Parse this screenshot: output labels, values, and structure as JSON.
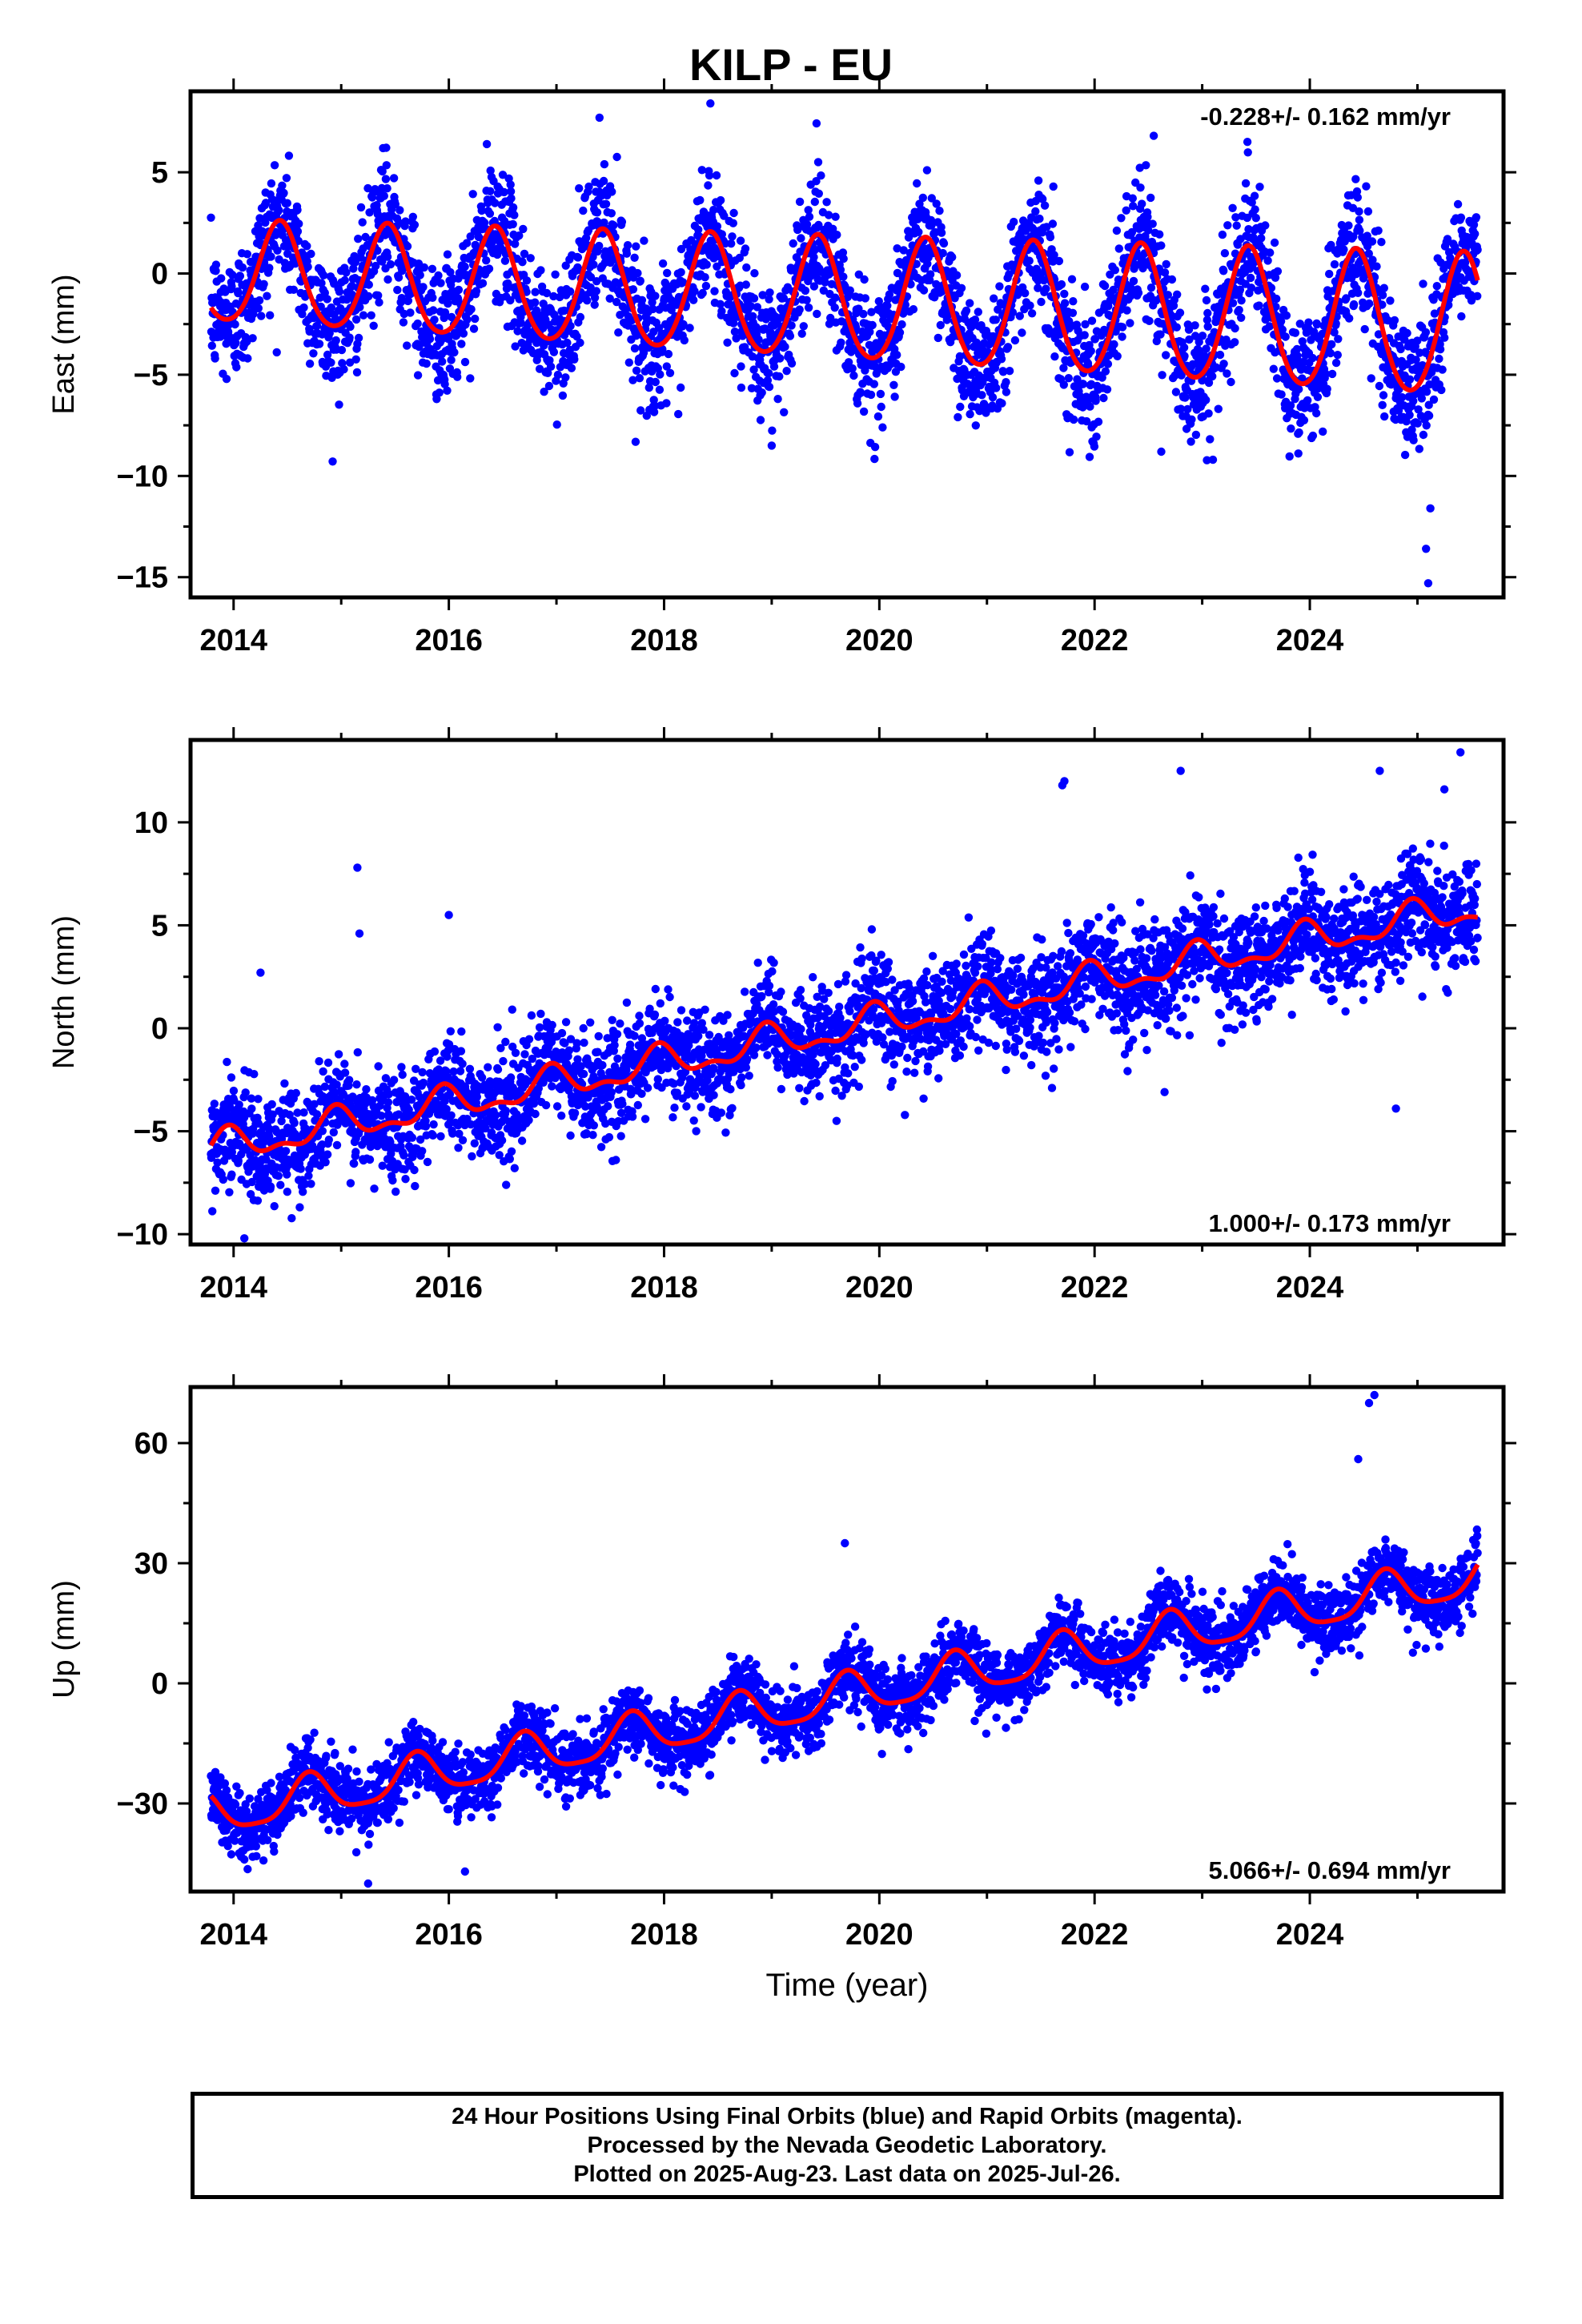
{
  "title": "KILP - EU",
  "footer": {
    "line1": "24 Hour Positions Using Final Orbits (blue) and Rapid Orbits (magenta).",
    "line2": "Processed by the Nevada Geodetic Laboratory.",
    "line3": "Plotted on 2025-Aug-23. Last data on 2025-Jul-26."
  },
  "colors": {
    "points": "#0000ff",
    "model": "#ff0000",
    "axes": "#000000"
  },
  "chart_data": [
    {
      "type": "scatter",
      "title": "KILP - EU",
      "xlabel": "",
      "ylabel": "East (mm)",
      "xlim": [
        2013.6,
        2025.8
      ],
      "ylim": [
        -16,
        9
      ],
      "xticks": [
        2014,
        2016,
        2018,
        2020,
        2022,
        2024
      ],
      "yticks": [
        5,
        0,
        -5,
        -10,
        -15
      ],
      "ytick_labels": [
        "5",
        "0",
        "−5",
        "−10",
        "−15"
      ],
      "rate_label": "-0.228+/- 0.162 mm/yr",
      "rate_label_position": "top-right",
      "series": [
        {
          "role": "daily positions",
          "color": "#0000ff",
          "model": {
            "intercept": -0.1,
            "rate": -0.228,
            "annual_amp": 3.0,
            "annual_amp_trend": 0.09,
            "annual_phase": 2014.43,
            "semiannual_amp": 0.3,
            "noise_sd": 1.6
          },
          "outliers": [
            [
              2018.43,
              8.4
            ],
            [
              2025.12,
              -11.6
            ],
            [
              2025.08,
              -13.6
            ],
            [
              2025.1,
              -15.3
            ],
            [
              2019.0,
              -8.5
            ],
            [
              2021.98,
              -8.3
            ],
            [
              2022.62,
              -8.8
            ],
            [
              2023.1,
              -9.2
            ],
            [
              2022.55,
              6.8
            ],
            [
              2017.4,
              7.7
            ],
            [
              2023.42,
              6.5
            ]
          ]
        },
        {
          "role": "model fit",
          "color": "#ff0000"
        }
      ]
    },
    {
      "type": "scatter",
      "title": "",
      "xlabel": "",
      "ylabel": "North (mm)",
      "xlim": [
        2013.6,
        2025.8
      ],
      "ylim": [
        -10.5,
        14
      ],
      "xticks": [
        2014,
        2016,
        2018,
        2020,
        2022,
        2024
      ],
      "yticks": [
        10,
        5,
        0,
        -5,
        -10
      ],
      "ytick_labels": [
        "10",
        "5",
        "0",
        "−5",
        "−10"
      ],
      "rate_label": "1.000+/- 0.173 mm/yr",
      "rate_label_position": "bottom-right",
      "series": [
        {
          "role": "daily positions",
          "color": "#0000ff",
          "model": {
            "intercept": -5.7,
            "rate": 1.0,
            "annual_amp": 0.7,
            "annual_amp_trend": 0.0,
            "annual_phase": 2014.95,
            "semiannual_amp": 0.35,
            "noise_sd": 1.25
          },
          "outliers": [
            [
              2015.15,
              7.8
            ],
            [
              2015.17,
              4.6
            ],
            [
              2016.0,
              5.5
            ],
            [
              2014.25,
              2.7
            ],
            [
              2021.7,
              11.8
            ],
            [
              2021.72,
              12.0
            ],
            [
              2022.8,
              12.5
            ],
            [
              2024.65,
              12.5
            ],
            [
              2025.4,
              13.4
            ],
            [
              2025.25,
              11.6
            ],
            [
              2024.8,
              -3.9
            ],
            [
              2022.65,
              -3.1
            ],
            [
              2014.1,
              -10.2
            ]
          ]
        },
        {
          "role": "model fit",
          "color": "#ff0000"
        }
      ]
    },
    {
      "type": "scatter",
      "title": "",
      "xlabel": "Time (year)",
      "ylabel": "Up (mm)",
      "xlim": [
        2013.6,
        2025.8
      ],
      "ylim": [
        -52,
        74
      ],
      "xticks": [
        2014,
        2016,
        2018,
        2020,
        2022,
        2024
      ],
      "yticks": [
        60,
        30,
        0,
        -30
      ],
      "ytick_labels": [
        "60",
        "30",
        "0",
        "−30"
      ],
      "rate_label": "5.066+/- 0.694 mm/yr",
      "rate_label_position": "bottom-right",
      "series": [
        {
          "role": "daily positions",
          "color": "#0000ff",
          "model": {
            "intercept": -32,
            "rate": 5.066,
            "annual_amp": 5.2,
            "annual_amp_trend": 0.0,
            "annual_phase": 2014.7,
            "semiannual_amp": 1.2,
            "noise_sd": 4.2
          },
          "outliers": [
            [
              2024.55,
              70
            ],
            [
              2024.6,
              72
            ],
            [
              2019.68,
              35
            ],
            [
              2015.25,
              -50
            ],
            [
              2016.15,
              -47
            ],
            [
              2014.1,
              -44
            ],
            [
              2024.45,
              56
            ]
          ]
        },
        {
          "role": "model fit",
          "color": "#ff0000"
        }
      ]
    }
  ]
}
